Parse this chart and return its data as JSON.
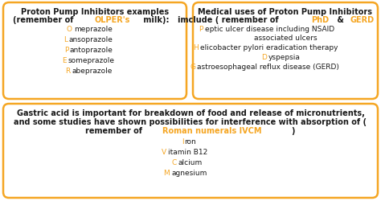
{
  "bg_color": "#ffffff",
  "border_color": "#F5A623",
  "box_bg": "#ffffff",
  "black": "#1a1a1a",
  "orange": "#F5A623",
  "box1_items": [
    {
      "first": "O",
      "rest": "meprazole"
    },
    {
      "first": "L",
      "rest": "ansoprazole"
    },
    {
      "first": "P",
      "rest": "antoprazole"
    },
    {
      "first": "E",
      "rest": "someprazole"
    },
    {
      "first": "R",
      "rest": "abeprazole"
    }
  ],
  "box2_items": [
    {
      "first": "P",
      "rest": "eptic ulcer disease including NSAID"
    },
    {
      "first": "H",
      "rest": "elicobacter pylori eradication therapy"
    },
    {
      "first": "D",
      "rest": "yspepsia"
    },
    {
      "first": "G",
      "rest": "astroesophageal reflux disease (GERD)"
    }
  ],
  "box3_items": [
    {
      "first": "I",
      "rest": "ron"
    },
    {
      "first": "V",
      "rest": "itamin B12"
    },
    {
      "first": "C",
      "rest": "alcium"
    },
    {
      "first": "M",
      "rest": "agnesium"
    }
  ]
}
